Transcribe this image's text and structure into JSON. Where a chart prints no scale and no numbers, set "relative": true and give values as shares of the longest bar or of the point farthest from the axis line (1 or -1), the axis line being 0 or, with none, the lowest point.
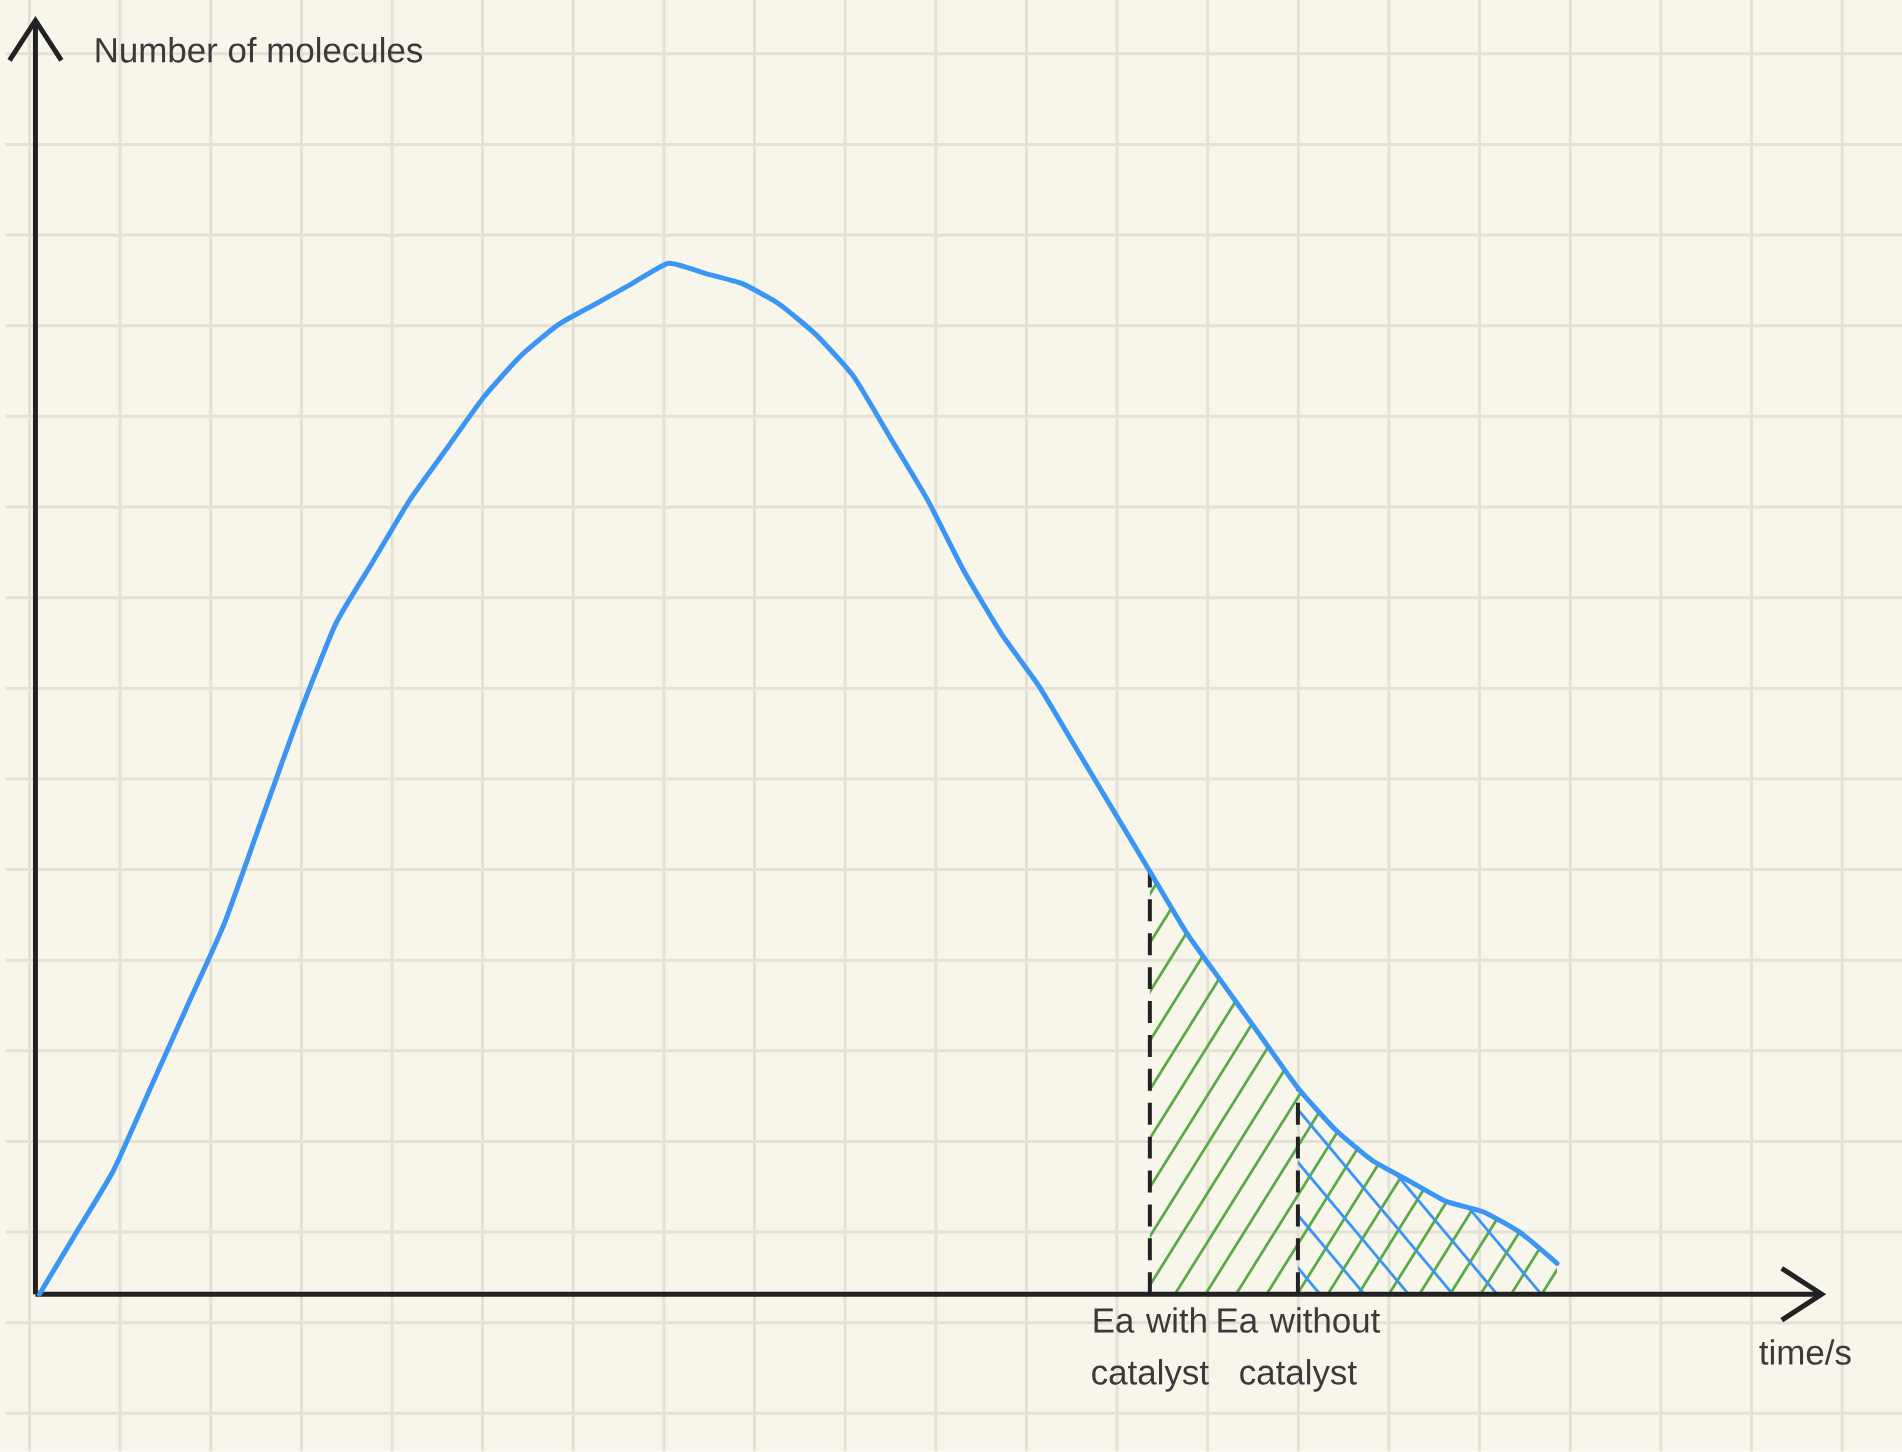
{
  "chart_data": {
    "type": "line",
    "annotations": [
      "Number of molecules",
      "time/s"
    ],
    "relative": true,
    "grid": true,
    "categories": [
      null,
      null,
      null,
      null,
      null,
      null,
      null,
      null,
      null,
      null,
      null,
      null,
      null,
      null,
      null,
      null,
      null,
      null,
      null,
      null,
      null,
      null,
      null,
      null,
      null,
      null,
      null,
      null,
      null,
      null,
      "Ea with catalyst",
      null,
      null,
      null,
      "Ea without catalyst",
      null,
      null,
      null,
      null,
      null,
      null,
      null
    ],
    "series": [
      {
        "color": "#3a95f3",
        "values": [
          0,
          0.06,
          0.12,
          0.2,
          0.28,
          0.36,
          0.46,
          0.56,
          0.65,
          0.71,
          0.77,
          0.82,
          0.87,
          0.91,
          0.94,
          0.96,
          0.98,
          1,
          0.99,
          0.98,
          0.96,
          0.93,
          0.89,
          0.83,
          0.77,
          0.7,
          0.64,
          0.59,
          0.53,
          0.47,
          0.41,
          0.35,
          0.3,
          0.25,
          0.2,
          0.16,
          0.13,
          0.11,
          0.09,
          0.08,
          0.06,
          0.03
        ]
      }
    ],
    "ref_lines": [
      {
        "axis": "x",
        "value": "Ea with catalyst",
        "line_style": "dashed",
        "color": "#222222"
      },
      {
        "axis": "x",
        "value": "Ea without catalyst",
        "line_style": "dashed",
        "color": "#222222"
      }
    ]
  }
}
